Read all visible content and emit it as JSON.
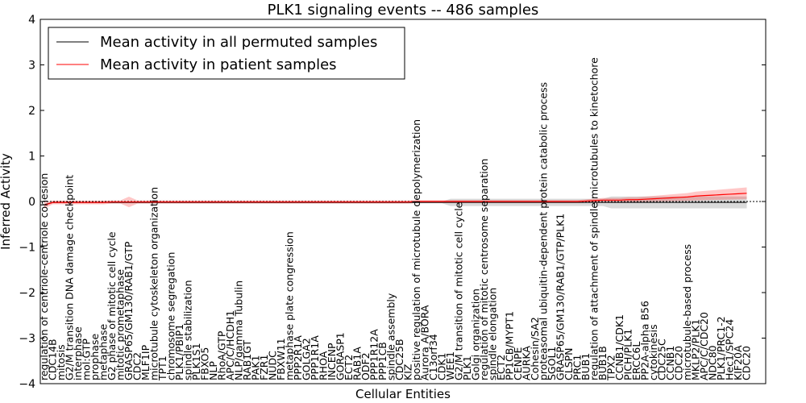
{
  "chart_data": {
    "type": "line",
    "title": "PLK1 signaling events -- 486 samples",
    "xlabel": "Cellular Entities",
    "ylabel": "Inferred Activity",
    "ylim": [
      -4,
      4
    ],
    "yticks": [
      "−4",
      "−3",
      "−2",
      "−1",
      "0",
      "1",
      "2",
      "3",
      "4"
    ],
    "yticks_values": [
      -4,
      -3,
      -2,
      -1,
      0,
      1,
      2,
      3,
      4
    ],
    "legend_position": "top-left",
    "categories": [
      "regulation of centriole-centriole cohesion",
      "CDC14B",
      "mitosis",
      "G2/M transition DNA damage checkpoint",
      "interphase",
      "mol:GTP",
      "prophase",
      "metaphase",
      "G2 phase of mitotic cell cycle",
      "mitotic prometaphase",
      "GRASP65/GM130/RAB1/GTP",
      "CDC2",
      "MLF1IP",
      "microtubule cytoskeleton organization",
      "TPT1",
      "chromosome segregation",
      "PLK1/PBIP1",
      "spindle stabilization",
      "PLK1S1",
      "FBXO5",
      "NLP",
      "RhoA/GTP",
      "APC/C/HCDH1",
      "NLP/gamma Tubulin",
      "RAB1GT",
      "PAK1",
      "FZR1",
      "NUDC",
      "FBXW11",
      "metaphase plate congression",
      "PPP2R1A",
      "GOLGA2",
      "PPP1R1A",
      "RHOA",
      "INCENP",
      "GORASP1",
      "ECT2",
      "RAB1A",
      "ODF2",
      "PPP1R12A",
      "PPP1CB",
      "spindle assembly",
      "CDC25B",
      "KIZ",
      "positive regulation of microtubule depolymerization",
      "Aurora A/BORA",
      "C13orf34",
      "CDK1",
      "WEE1",
      "G2/M transition of mitotic cell cycle",
      "PLK1",
      "Golgi organization",
      "regulation of mitotic centrosome separation",
      "spindle elongation",
      "ECT2",
      "PP1CB/MYPT1",
      "CENPE",
      "AURKA",
      "Cohesin/SA2",
      "proteasomal ubiquitin-dependent protein catabolic process",
      "SGOL1",
      "GRASP65/GM130/RAB1/GTP/PLK1",
      "CLSPN",
      "PRC1",
      "BUB1",
      "regulation of attachment of spindle microtubules to kinetochore",
      "BUB1B",
      "TPX2",
      "CCNB1/CDK1",
      "PICH/PLK1",
      "ERCC6L",
      "PP2A-alpha B56",
      "cytokinesis",
      "CDC25C",
      "CCNB1",
      "CDC20",
      "microtubule-based process",
      "MKLP2/PLK1",
      "APC/C/CDC20",
      "NDC80",
      "PLK1/PRC1-2",
      "Hec1/SPC24",
      "KIF20A",
      "CDC20"
    ],
    "series": [
      {
        "name": "Mean activity in all permuted samples",
        "color": "#000000",
        "values": [
          -0.07,
          -0.02,
          -0.02,
          -0.02,
          -0.02,
          -0.02,
          -0.02,
          -0.02,
          -0.02,
          -0.02,
          -0.02,
          -0.02,
          -0.02,
          -0.02,
          -0.02,
          -0.02,
          -0.02,
          -0.02,
          -0.02,
          -0.02,
          -0.02,
          -0.02,
          -0.02,
          -0.02,
          -0.02,
          -0.02,
          -0.02,
          -0.02,
          -0.02,
          -0.02,
          -0.02,
          -0.02,
          -0.02,
          -0.02,
          -0.02,
          -0.02,
          -0.02,
          -0.02,
          -0.02,
          -0.02,
          -0.02,
          -0.02,
          -0.02,
          -0.02,
          -0.02,
          -0.02,
          -0.02,
          -0.02,
          -0.02,
          -0.02,
          -0.02,
          -0.02,
          -0.02,
          -0.02,
          -0.02,
          -0.02,
          -0.02,
          -0.02,
          -0.02,
          -0.02,
          -0.02,
          -0.02,
          -0.02,
          -0.02,
          -0.02,
          -0.02,
          -0.02,
          -0.02,
          -0.02,
          -0.02,
          -0.02,
          -0.02,
          -0.02,
          -0.02,
          -0.02,
          -0.02,
          -0.02,
          -0.02,
          -0.02,
          -0.02,
          -0.02,
          -0.02,
          -0.02,
          -0.02
        ]
      },
      {
        "name": "Mean activity in patient samples",
        "color": "#ff0000",
        "values": [
          -0.08,
          -0.02,
          -0.02,
          -0.02,
          -0.02,
          -0.02,
          -0.02,
          -0.02,
          -0.01,
          -0.01,
          -0.01,
          -0.01,
          -0.01,
          -0.01,
          -0.01,
          -0.01,
          -0.01,
          -0.01,
          -0.01,
          -0.01,
          -0.01,
          -0.01,
          -0.01,
          -0.01,
          -0.01,
          -0.01,
          -0.01,
          -0.01,
          -0.01,
          -0.01,
          -0.01,
          -0.01,
          -0.01,
          -0.01,
          -0.01,
          -0.01,
          -0.01,
          -0.01,
          -0.01,
          -0.01,
          -0.01,
          -0.01,
          -0.01,
          -0.01,
          0.0,
          0.0,
          0.0,
          0.0,
          0.0,
          0.0,
          0.0,
          0.0,
          0.0,
          0.0,
          0.0,
          0.0,
          0.0,
          0.0,
          0.0,
          0.0,
          0.0,
          0.0,
          0.0,
          0.0,
          0.01,
          0.02,
          0.03,
          0.03,
          0.03,
          0.04,
          0.04,
          0.05,
          0.06,
          0.07,
          0.08,
          0.09,
          0.1,
          0.12,
          0.13,
          0.14,
          0.15,
          0.16,
          0.17,
          0.18
        ]
      }
    ]
  }
}
